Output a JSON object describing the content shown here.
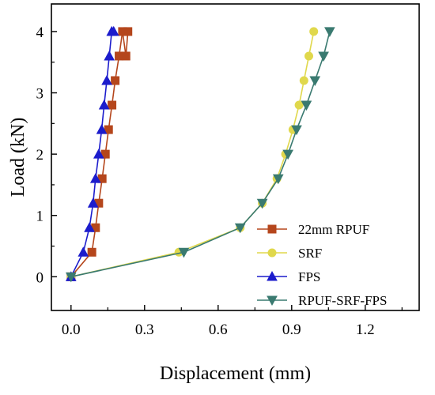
{
  "chart_data": {
    "type": "line",
    "title": "",
    "xlabel": "Displacement  (mm)",
    "ylabel": "Load  (kN)",
    "xlim": [
      -0.08,
      1.42
    ],
    "ylim": [
      -0.55,
      4.45
    ],
    "xticks": [
      0.0,
      0.3,
      0.6,
      0.9,
      1.2
    ],
    "xtick_labels": [
      "0.0",
      "0.3",
      "0.6",
      "0.9",
      "1.2"
    ],
    "yticks": [
      0,
      1,
      2,
      3,
      4
    ],
    "ytick_labels": [
      "0",
      "1",
      "2",
      "3",
      "4"
    ],
    "grid": false,
    "legend_position": "bottom-right",
    "series": [
      {
        "name": "22mm RPUF",
        "color": "#b5461c",
        "marker": "square",
        "x": [
          0.0,
          0.085,
          0.1,
          0.113,
          0.127,
          0.14,
          0.153,
          0.167,
          0.18,
          0.196,
          0.21,
          0.224,
          0.232
        ],
        "y": [
          0.0,
          0.4,
          0.8,
          1.2,
          1.6,
          2.0,
          2.4,
          2.8,
          3.2,
          3.6,
          4.0,
          3.6,
          4.0
        ]
      },
      {
        "name": "SRF",
        "color": "#e0d84c",
        "marker": "circle",
        "x": [
          0.0,
          0.44,
          0.69,
          0.78,
          0.84,
          0.875,
          0.905,
          0.93,
          0.95,
          0.97,
          0.99
        ],
        "y": [
          0.0,
          0.4,
          0.8,
          1.2,
          1.6,
          2.0,
          2.4,
          2.8,
          3.2,
          3.6,
          4.0
        ]
      },
      {
        "name": "FPS",
        "color": "#1c1ccc",
        "marker": "triangle-up",
        "x": [
          0.0,
          0.05,
          0.075,
          0.09,
          0.1,
          0.113,
          0.125,
          0.135,
          0.146,
          0.156,
          0.166,
          0.174
        ],
        "y": [
          0.0,
          0.4,
          0.8,
          1.2,
          1.6,
          2.0,
          2.4,
          2.8,
          3.2,
          3.6,
          4.0,
          4.0
        ]
      },
      {
        "name": "RPUF-SRF-FPS",
        "color": "#3a7a70",
        "marker": "triangle-down",
        "x": [
          0.0,
          0.46,
          0.69,
          0.78,
          0.845,
          0.885,
          0.92,
          0.96,
          0.995,
          1.03,
          1.055
        ],
        "y": [
          0.0,
          0.4,
          0.8,
          1.2,
          1.6,
          2.0,
          2.4,
          2.8,
          3.2,
          3.6,
          4.0
        ]
      }
    ]
  }
}
